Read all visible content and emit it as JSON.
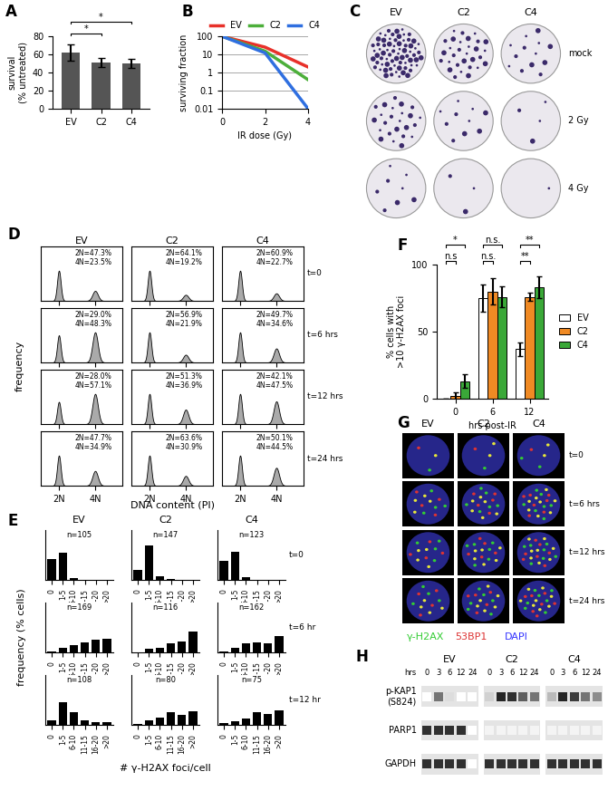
{
  "panel_labels": [
    "A",
    "B",
    "C",
    "D",
    "E",
    "F",
    "G",
    "H"
  ],
  "chart_data": [
    {
      "panel": "A",
      "type": "bar",
      "categories": [
        "EV",
        "C2",
        "C4"
      ],
      "values": [
        62,
        51,
        50
      ],
      "errors": [
        9,
        5,
        5
      ],
      "color": "#555555",
      "ylabel": "survival\n(% untreated)",
      "ylim": [
        0,
        80
      ],
      "yticks": [
        0,
        20,
        40,
        60,
        80
      ],
      "annotations": [
        {
          "text": "*",
          "between": [
            "EV",
            "C2"
          ]
        },
        {
          "text": "*",
          "between": [
            "EV",
            "C4"
          ]
        }
      ]
    },
    {
      "panel": "B",
      "type": "line",
      "x": [
        0,
        2,
        4
      ],
      "series": [
        {
          "name": "EV",
          "color": "#e8312a",
          "values": [
            100,
            25,
            2
          ]
        },
        {
          "name": "C2",
          "color": "#4caf3a",
          "values": [
            100,
            15,
            0.4
          ]
        },
        {
          "name": "C4",
          "color": "#2f6fe0",
          "values": [
            100,
            12,
            0.01
          ]
        }
      ],
      "xlabel": "IR dose (Gy)",
      "ylabel": "surviving fraction",
      "xlim": [
        0,
        4
      ],
      "xticks": [
        0,
        2,
        4
      ],
      "ylim": [
        0.01,
        100
      ],
      "yticks": [
        0.01,
        0.1,
        1,
        10,
        100
      ],
      "log": "y",
      "grid": true,
      "legend": "upper center"
    },
    {
      "panel": "D",
      "type": "area",
      "columns": [
        "EV",
        "C2",
        "C4"
      ],
      "rows": [
        "t=0",
        "t=6 hrs",
        "t=12 hrs",
        "t=24 hrs"
      ],
      "xlabel": "DNA content (PI)",
      "ylabel": "frequency",
      "xlim": [
        1,
        5.5
      ],
      "xticks": [
        {
          "value": 2,
          "label": "2N"
        },
        {
          "value": 4,
          "label": "4N"
        }
      ],
      "tick_labels": "x",
      "cells": [
        [
          {
            "values": [
              47.3,
              23.5
            ],
            "value_labels": [
              "2N=47.3%",
              "4N=23.5%"
            ]
          },
          {
            "values": [
              64.1,
              19.2
            ],
            "value_labels": [
              "2N=64.1%",
              "4N=19.2%"
            ]
          },
          {
            "values": [
              60.9,
              22.7
            ],
            "value_labels": [
              "2N=60.9%",
              "4N=22.7%"
            ]
          }
        ],
        [
          {
            "values": [
              29.0,
              48.3
            ],
            "value_labels": [
              "2N=29.0%",
              "4N=48.3%"
            ]
          },
          {
            "values": [
              56.9,
              21.9
            ],
            "value_labels": [
              "2N=56.9%",
              "4N=21.9%"
            ]
          },
          {
            "values": [
              49.7,
              34.6
            ],
            "value_labels": [
              "2N=49.7%",
              "4N=34.6%"
            ]
          }
        ],
        [
          {
            "values": [
              28.0,
              57.1
            ],
            "value_labels": [
              "2N=28.0%",
              "4N=57.1%"
            ]
          },
          {
            "values": [
              51.3,
              36.9
            ],
            "value_labels": [
              "2N=51.3%",
              "4N=36.9%"
            ]
          },
          {
            "values": [
              42.1,
              47.5
            ],
            "value_labels": [
              "2N=42.1%",
              "4N=47.5%"
            ]
          }
        ],
        [
          {
            "values": [
              47.7,
              34.9
            ],
            "value_labels": [
              "2N=47.7%",
              "4N=34.9%"
            ]
          },
          {
            "values": [
              63.6,
              30.9
            ],
            "value_labels": [
              "2N=63.6%",
              "4N=30.9%"
            ]
          },
          {
            "values": [
              50.1,
              44.5
            ],
            "value_labels": [
              "2N=50.1%",
              "4N=44.5%"
            ]
          }
        ]
      ]
    },
    {
      "panel": "E",
      "type": "bar",
      "columns": [
        "EV",
        "C2",
        "C4"
      ],
      "rows": [
        "t=0",
        "t=6 hr",
        "t=12 hr"
      ],
      "categories": [
        "0",
        "1-5",
        "6-10",
        "11-15",
        "16-20",
        ">20"
      ],
      "color": "#000000",
      "xlabel": "# γ-H2AX foci/cell",
      "ylabel": "frequency (% cells)",
      "ylim": [
        0,
        100
      ],
      "yticks": [],
      "tick_labels": "x",
      "cells": [
        [
          {
            "n_label": "n=105",
            "values": [
              42,
              55,
              3,
              0,
              0,
              0
            ]
          },
          {
            "n_label": "n=147",
            "values": [
              20,
              70,
              8,
              2,
              0,
              0
            ]
          },
          {
            "n_label": "n=123",
            "values": [
              38,
              57,
              5,
              0,
              0,
              0
            ]
          }
        ],
        [
          {
            "n_label": "n=169",
            "values": [
              2,
              10,
              15,
              20,
              25,
              28
            ]
          },
          {
            "n_label": "n=116",
            "values": [
              0,
              8,
              10,
              18,
              22,
              42
            ]
          },
          {
            "n_label": "n=162",
            "values": [
              2,
              10,
              18,
              20,
              18,
              32
            ]
          }
        ],
        [
          {
            "n_label": "n=108",
            "values": [
              10,
              45,
              25,
              10,
              5,
              5
            ]
          },
          {
            "n_label": "n=80",
            "values": [
              2,
              10,
              15,
              25,
              20,
              28
            ]
          },
          {
            "n_label": "n=75",
            "values": [
              3,
              8,
              12,
              25,
              22,
              30
            ]
          }
        ]
      ]
    },
    {
      "panel": "F",
      "type": "bar",
      "categories": [
        "0",
        "6",
        "12"
      ],
      "xlabel": "hrs post-IR",
      "ylabel": "% cells with\n>10 γ-H2AX foci",
      "series": [
        {
          "name": "EV",
          "color": "#ffffff",
          "values": [
            0,
            75,
            37
          ],
          "errors": [
            0,
            10,
            5
          ]
        },
        {
          "name": "C2",
          "color": "#f08a24",
          "values": [
            2,
            80,
            76
          ],
          "errors": [
            3,
            10,
            3
          ]
        },
        {
          "name": "C4",
          "color": "#3aa838",
          "values": [
            13,
            76,
            83
          ],
          "errors": [
            5,
            8,
            8
          ]
        }
      ],
      "ylim": [
        0,
        100
      ],
      "yticks": [
        0,
        50,
        100
      ],
      "legend": "right",
      "annotations": [
        {
          "category": "0",
          "text": "n.s",
          "between": [
            "EV",
            "C2"
          ]
        },
        {
          "category": "0",
          "text": "*",
          "between": [
            "EV",
            "C4"
          ]
        },
        {
          "category": "6",
          "text": "n.s.",
          "between": [
            "EV",
            "C2"
          ]
        },
        {
          "category": "6",
          "text": "n.s.",
          "between": [
            "EV",
            "C4"
          ]
        },
        {
          "category": "12",
          "text": "**",
          "between": [
            "EV",
            "C2"
          ]
        },
        {
          "category": "12",
          "text": "**",
          "between": [
            "EV",
            "C4"
          ]
        }
      ]
    }
  ],
  "images": [
    {
      "panel": "C",
      "type": "image",
      "columns": [
        "EV",
        "C2",
        "C4"
      ],
      "rows": [
        "mock",
        "2 Gy",
        "4 Gy"
      ]
    },
    {
      "panel": "G",
      "type": "image",
      "columns": [
        "EV",
        "C2",
        "C4"
      ],
      "rows": [
        "t=0",
        "t=6 hrs",
        "t=12 hrs",
        "t=24 hrs"
      ],
      "channels": [
        {
          "name": "γ-H2AX",
          "color": "#33cc33"
        },
        {
          "name": "53BP1",
          "color": "#dd3333"
        },
        {
          "name": "DAPI",
          "color": "#3333ff"
        }
      ]
    },
    {
      "panel": "H",
      "type": "blot",
      "groups": [
        "EV",
        "C2",
        "C4"
      ],
      "lanes_label": "hrs",
      "lanes": [
        0,
        3,
        6,
        12,
        24
      ],
      "rows": [
        {
          "name": "p-KAP1\n(S824)",
          "intensity": [
            [
              0,
              0.6,
              0.15,
              0,
              0
            ],
            [
              0.2,
              0.95,
              0.9,
              0.7,
              0.6
            ],
            [
              0.3,
              0.95,
              0.85,
              0.6,
              0.5
            ]
          ]
        },
        {
          "name": "PARP1",
          "intensity": [
            [
              0.9,
              0.9,
              0.9,
              0.9,
              0
            ],
            [
              0.05,
              0.05,
              0.05,
              0.05,
              0.05
            ],
            [
              0.05,
              0.05,
              0.05,
              0.05,
              0.05
            ]
          ]
        },
        {
          "name": "GAPDH",
          "intensity": [
            [
              0.9,
              0.9,
              0.9,
              0.9,
              0
            ],
            [
              0.9,
              0.9,
              0.9,
              0.9,
              0.9
            ],
            [
              0.9,
              0.9,
              0.9,
              0.9,
              0.9
            ]
          ]
        }
      ]
    }
  ]
}
